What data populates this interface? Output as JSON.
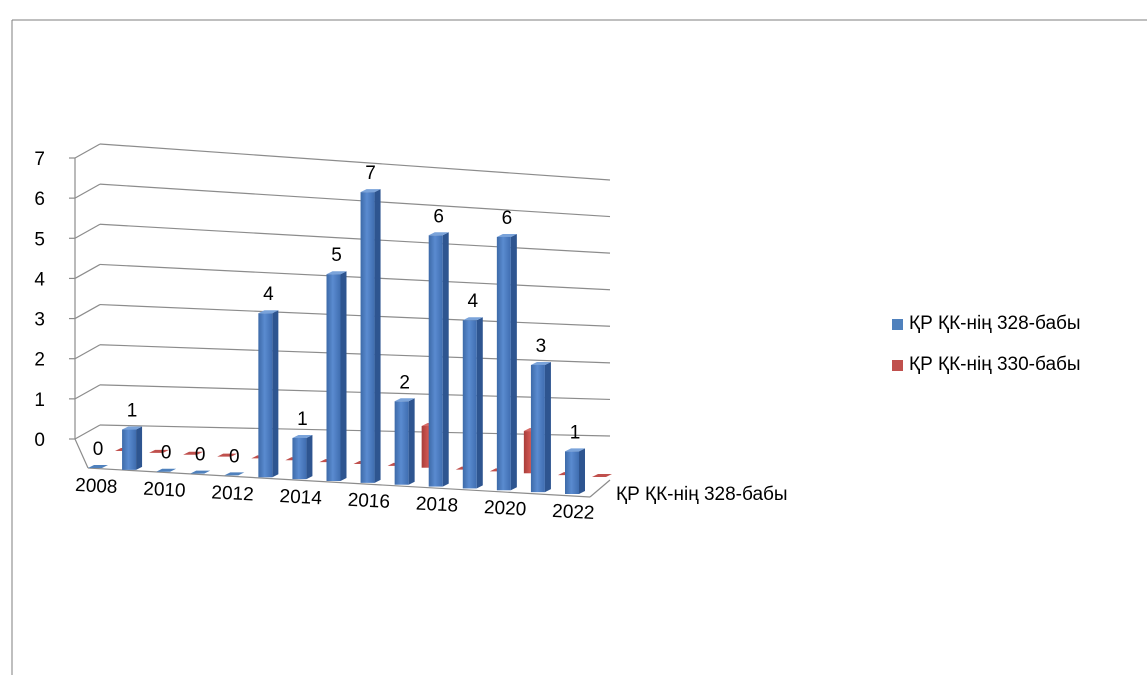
{
  "chart_data": {
    "type": "bar",
    "title": "",
    "years": [
      "2008",
      "2009",
      "2010",
      "2011",
      "2012",
      "2013",
      "2014",
      "2015",
      "2016",
      "2017",
      "2018",
      "2019",
      "2020",
      "2021",
      "2022"
    ],
    "x_tick_labels": [
      "2008",
      "2010",
      "2012",
      "2014",
      "2016",
      "2018",
      "2020",
      "2022"
    ],
    "series": [
      {
        "name": "ҚР ҚК-нің 328-бабы",
        "color": "#4f81bd",
        "values": [
          0,
          1,
          0,
          0,
          0,
          4,
          1,
          5,
          7,
          2,
          6,
          4,
          6,
          3,
          1
        ]
      },
      {
        "name": "ҚР ҚК-нің 330-бабы",
        "color": "#c0504d",
        "values": [
          0,
          0,
          0,
          0,
          0,
          0,
          0,
          0,
          0,
          1,
          0,
          0,
          1,
          0,
          0
        ]
      }
    ],
    "data_labels": [
      "0",
      "1",
      "0",
      "0",
      "0",
      "4",
      "1",
      "5",
      "7",
      "2",
      "6",
      "4",
      "6",
      "3",
      "1"
    ],
    "depth_axis_label": "ҚР ҚК-нің 328-бабы",
    "y_ticks": [
      "0",
      "1",
      "2",
      "3",
      "4",
      "5",
      "6",
      "7"
    ],
    "ylim": [
      0,
      7
    ],
    "grid": true,
    "legend_position": "right"
  }
}
